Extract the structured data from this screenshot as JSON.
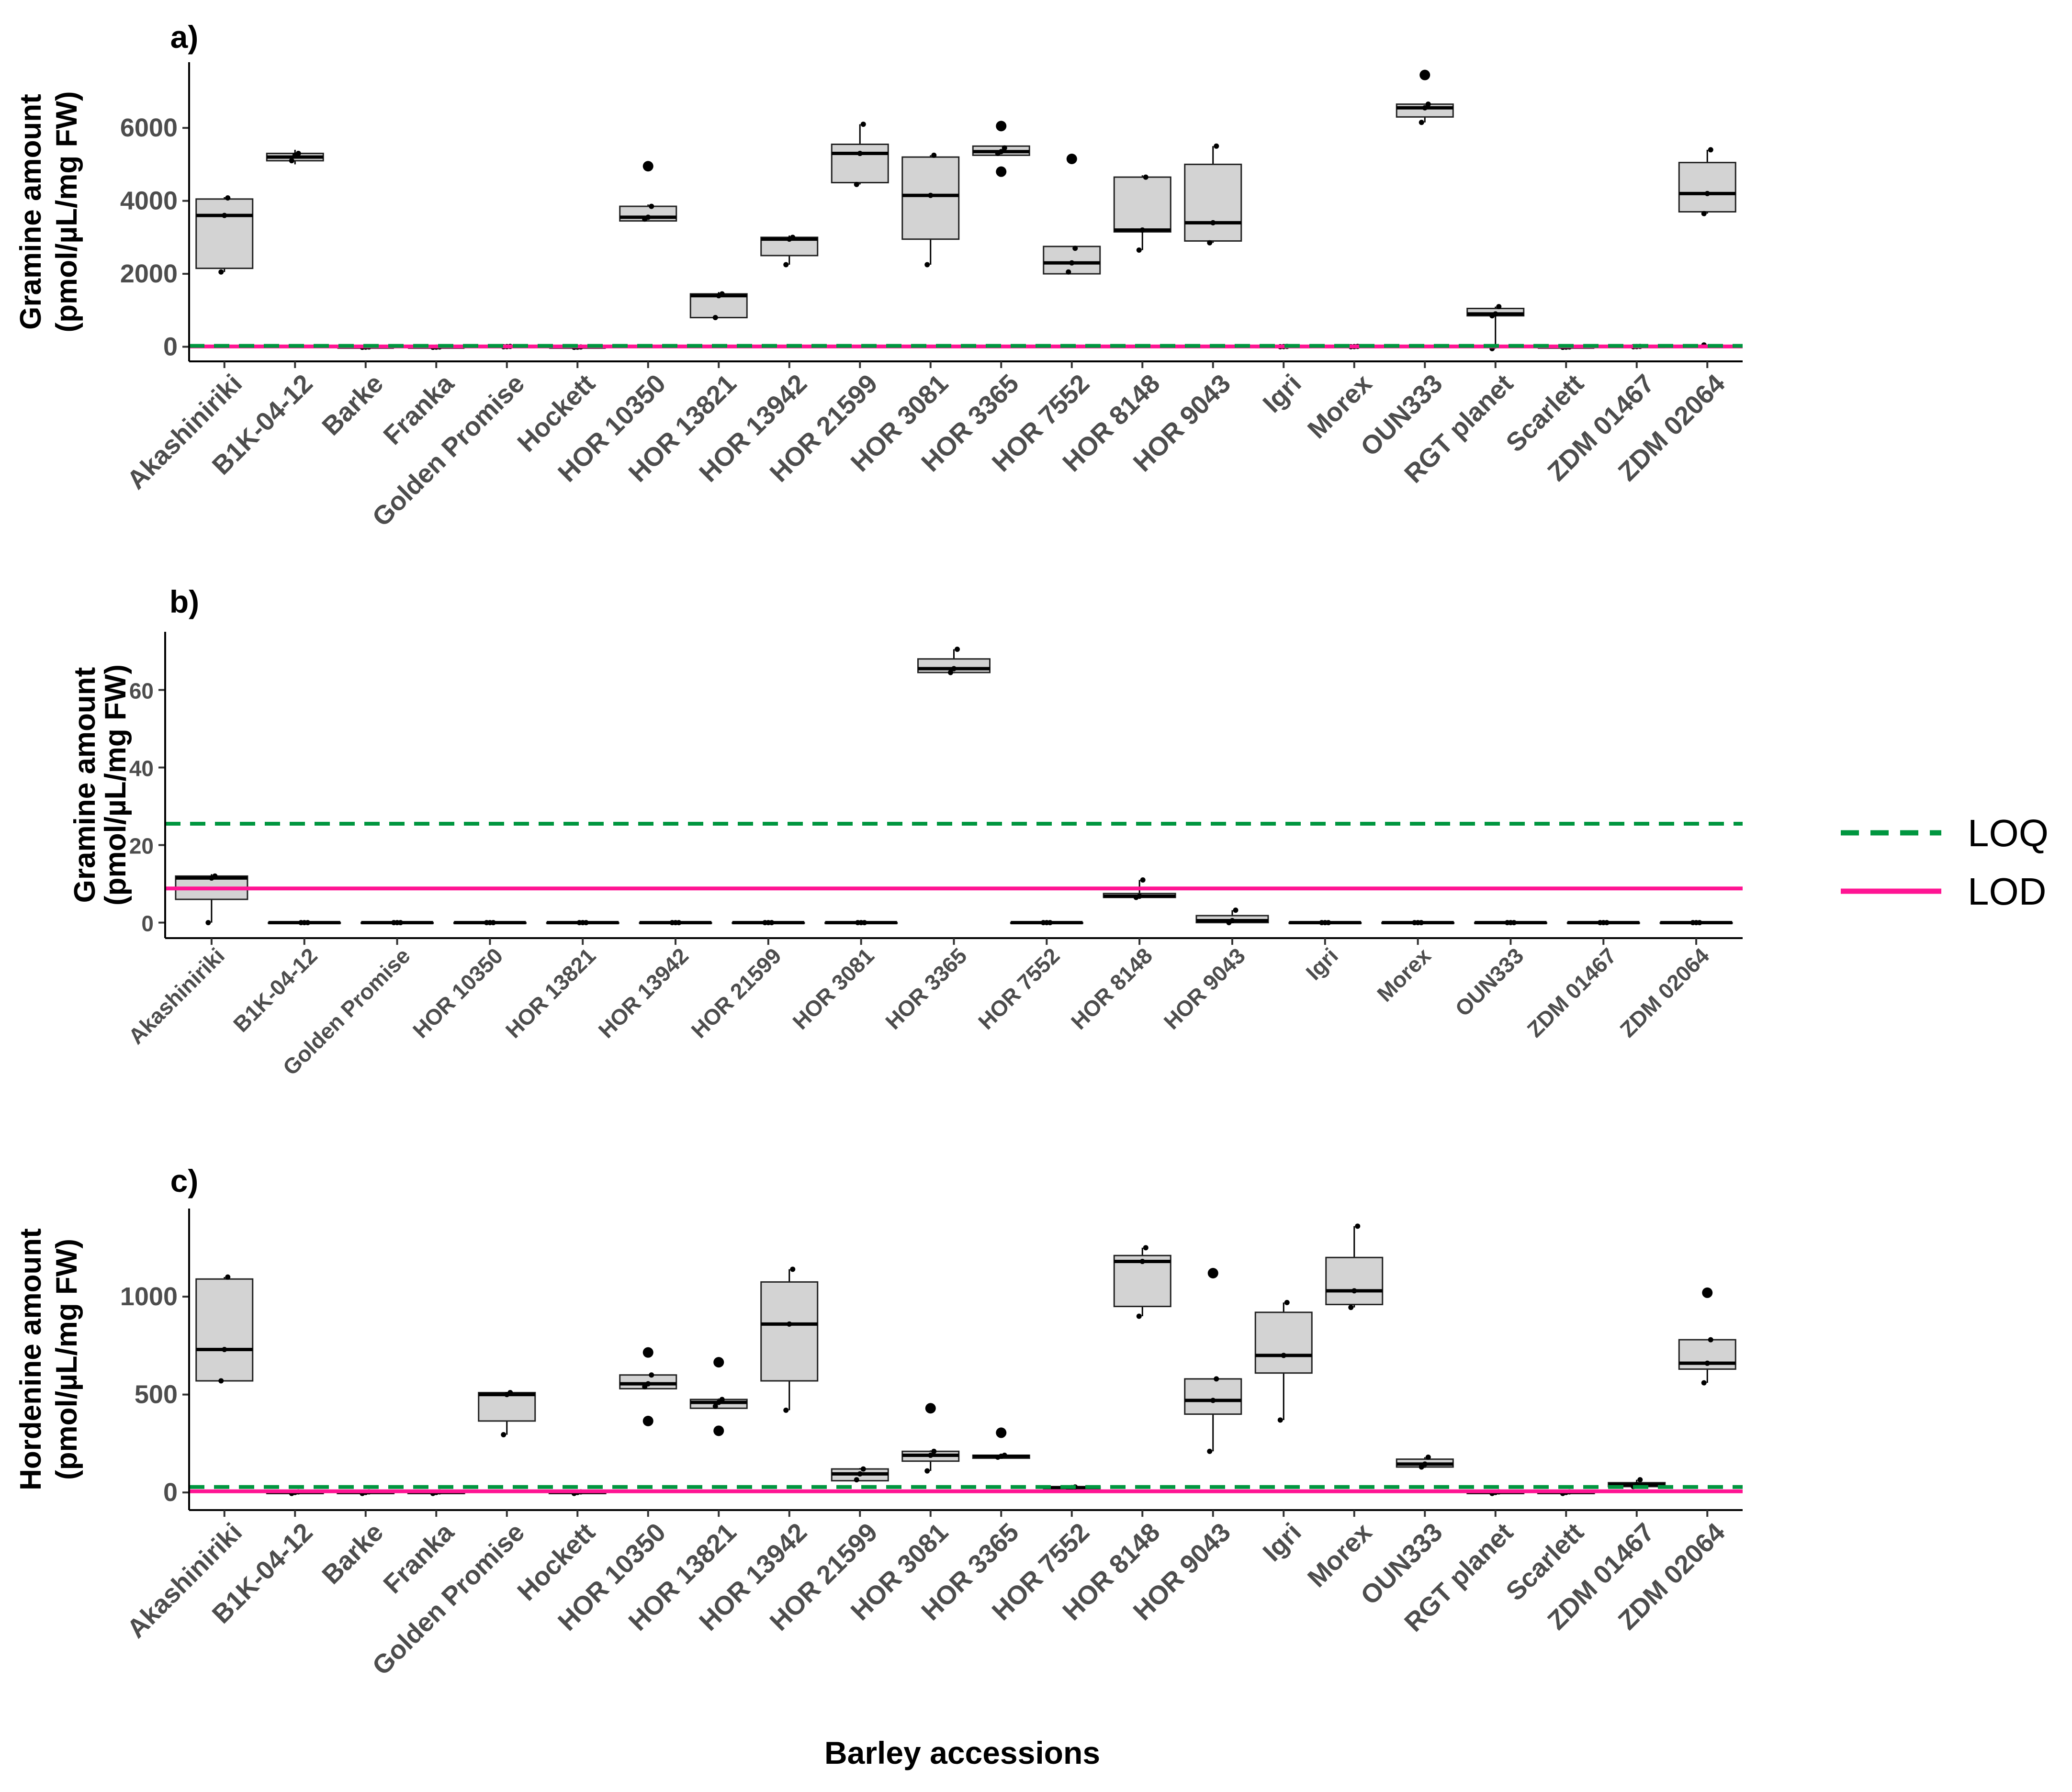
{
  "x_title": "Barley accessions",
  "legend": [
    {
      "label": "LOQ",
      "color": "#00963f",
      "dash": true
    },
    {
      "label": "LOD",
      "color": "#ff1493",
      "dash": false
    }
  ],
  "chart_data": [
    {
      "type": "box",
      "panel": "a)",
      "ylabel_lines": [
        "Gramine amount",
        "(pmol/µL/mg FW)"
      ],
      "ylim": [
        -400,
        7800
      ],
      "yticks": [
        0,
        2000,
        4000,
        6000
      ],
      "loq": 25,
      "lod": 9,
      "categories": [
        "Akashiniriki",
        "B1K-04-12",
        "Barke",
        "Franka",
        "Golden Promise",
        "Hockett",
        "HOR 10350",
        "HOR 13821",
        "HOR 13942",
        "HOR 21599",
        "HOR 3081",
        "HOR 3365",
        "HOR 7552",
        "HOR 8148",
        "HOR 9043",
        "Igri",
        "Morex",
        "OUN333",
        "RGT planet",
        "Scarlett",
        "ZDM 01467",
        "ZDM 02064"
      ],
      "boxes": [
        {
          "q1": 2150,
          "med": 3600,
          "q3": 4050,
          "lo": 2050,
          "hi": 4100,
          "pts": [
            2050,
            3600,
            4080
          ],
          "out": []
        },
        {
          "q1": 5100,
          "med": 5200,
          "q3": 5300,
          "lo": 5000,
          "hi": 5400,
          "pts": [
            5100,
            5250,
            5300
          ],
          "out": []
        },
        {
          "q1": -15,
          "med": -10,
          "q3": -5,
          "lo": -20,
          "hi": 0,
          "pts": [
            -15,
            -10,
            -5
          ],
          "out": []
        },
        {
          "q1": -15,
          "med": -10,
          "q3": -5,
          "lo": -20,
          "hi": 0,
          "pts": [
            -15,
            -10,
            -5
          ],
          "out": []
        },
        {
          "q1": 0,
          "med": 5,
          "q3": 10,
          "lo": 0,
          "hi": 12,
          "pts": [
            2,
            5,
            10
          ],
          "out": []
        },
        {
          "q1": -15,
          "med": -10,
          "q3": -5,
          "lo": -20,
          "hi": 0,
          "pts": [
            -15,
            -10,
            -5
          ],
          "out": []
        },
        {
          "q1": 3450,
          "med": 3550,
          "q3": 3850,
          "lo": 3450,
          "hi": 3900,
          "pts": [
            3500,
            3550,
            3850
          ],
          "out": [
            4950
          ]
        },
        {
          "q1": 800,
          "med": 1400,
          "q3": 1450,
          "lo": 780,
          "hi": 1500,
          "pts": [
            800,
            1400,
            1450
          ],
          "out": []
        },
        {
          "q1": 2500,
          "med": 2950,
          "q3": 3000,
          "lo": 2250,
          "hi": 3050,
          "pts": [
            2250,
            2950,
            3000
          ],
          "out": []
        },
        {
          "q1": 4500,
          "med": 5300,
          "q3": 5550,
          "lo": 4450,
          "hi": 6100,
          "pts": [
            4450,
            5300,
            6100
          ],
          "out": []
        },
        {
          "q1": 2950,
          "med": 4150,
          "q3": 5200,
          "lo": 2250,
          "hi": 5250,
          "pts": [
            2250,
            4150,
            5250
          ],
          "out": []
        },
        {
          "q1": 5250,
          "med": 5350,
          "q3": 5500,
          "lo": 5250,
          "hi": 5500,
          "pts": [
            5300,
            5350,
            5450
          ],
          "out": [
            6050,
            4800
          ]
        },
        {
          "q1": 2000,
          "med": 2300,
          "q3": 2750,
          "lo": 2000,
          "hi": 2750,
          "pts": [
            2050,
            2300,
            2700
          ],
          "out": [
            5150
          ]
        },
        {
          "q1": 3150,
          "med": 3200,
          "q3": 4650,
          "lo": 2650,
          "hi": 4700,
          "pts": [
            2650,
            3200,
            4650
          ],
          "out": []
        },
        {
          "q1": 2900,
          "med": 3400,
          "q3": 5000,
          "lo": 2850,
          "hi": 5500,
          "pts": [
            2850,
            3400,
            5500
          ],
          "out": []
        },
        {
          "q1": 0,
          "med": 5,
          "q3": 10,
          "lo": 0,
          "hi": 12,
          "pts": [
            2,
            5,
            10
          ],
          "out": []
        },
        {
          "q1": 0,
          "med": 5,
          "q3": 10,
          "lo": 0,
          "hi": 12,
          "pts": [
            2,
            5,
            10
          ],
          "out": []
        },
        {
          "q1": 6300,
          "med": 6550,
          "q3": 6650,
          "lo": 6150,
          "hi": 6650,
          "pts": [
            6150,
            6550,
            6650
          ],
          "out": [
            7450
          ]
        },
        {
          "q1": 850,
          "med": 900,
          "q3": 1050,
          "lo": -50,
          "hi": 1100,
          "pts": [
            850,
            900,
            1100,
            -50
          ],
          "out": []
        },
        {
          "q1": -15,
          "med": -10,
          "q3": -5,
          "lo": -20,
          "hi": 0,
          "pts": [
            -15,
            -10,
            -5
          ],
          "out": []
        },
        {
          "q1": 0,
          "med": 5,
          "q3": 10,
          "lo": 0,
          "hi": 12,
          "pts": [
            2,
            5,
            10
          ],
          "out": []
        },
        {
          "q1": 3700,
          "med": 4200,
          "q3": 5050,
          "lo": 3650,
          "hi": 5400,
          "pts": [
            3650,
            4200,
            5400,
            50
          ],
          "out": []
        }
      ]
    },
    {
      "type": "box",
      "panel": "b)",
      "ylabel_lines": [
        "Gramine amount",
        "(pmol/µL/mg FW)"
      ],
      "ylim": [
        -4,
        75
      ],
      "yticks": [
        0,
        20,
        40,
        60
      ],
      "loq": 25.5,
      "lod": 8.8,
      "categories": [
        "Akashiniriki",
        "B1K-04-12",
        "Golden Promise",
        "HOR 10350",
        "HOR 13821",
        "HOR 13942",
        "HOR 21599",
        "HOR 3081",
        "HOR 3365",
        "HOR 7552",
        "HOR 8148",
        "HOR 9043",
        "Igri",
        "Morex",
        "OUN333",
        "ZDM 01467",
        "ZDM 02064"
      ],
      "boxes": [
        {
          "q1": 6,
          "med": 11.5,
          "q3": 12,
          "lo": 0,
          "hi": 12.5,
          "pts": [
            0,
            11.5,
            12
          ],
          "out": []
        },
        {
          "q1": 0,
          "med": 0,
          "q3": 0,
          "lo": 0,
          "hi": 0,
          "pts": [
            0,
            0,
            0
          ],
          "out": []
        },
        {
          "q1": 0,
          "med": 0,
          "q3": 0,
          "lo": 0,
          "hi": 0,
          "pts": [
            0,
            0,
            0
          ],
          "out": []
        },
        {
          "q1": 0,
          "med": 0,
          "q3": 0,
          "lo": 0,
          "hi": 0,
          "pts": [
            0,
            0,
            0
          ],
          "out": []
        },
        {
          "q1": 0,
          "med": 0,
          "q3": 0,
          "lo": 0,
          "hi": 0,
          "pts": [
            0,
            0,
            0
          ],
          "out": []
        },
        {
          "q1": 0,
          "med": 0,
          "q3": 0,
          "lo": 0,
          "hi": 0,
          "pts": [
            0,
            0,
            0
          ],
          "out": []
        },
        {
          "q1": 0,
          "med": 0,
          "q3": 0,
          "lo": 0,
          "hi": 0,
          "pts": [
            0,
            0,
            0
          ],
          "out": []
        },
        {
          "q1": 0,
          "med": 0,
          "q3": 0,
          "lo": 0,
          "hi": 0,
          "pts": [
            0,
            0,
            0
          ],
          "out": []
        },
        {
          "q1": 64.5,
          "med": 65.5,
          "q3": 68,
          "lo": 64.3,
          "hi": 70.5,
          "pts": [
            64.5,
            65.5,
            70.5
          ],
          "out": []
        },
        {
          "q1": 0,
          "med": 0,
          "q3": 0,
          "lo": 0,
          "hi": 0,
          "pts": [
            0,
            0,
            0
          ],
          "out": []
        },
        {
          "q1": 6.5,
          "med": 6.8,
          "q3": 7.5,
          "lo": 6.5,
          "hi": 11,
          "pts": [
            6.5,
            6.8,
            11
          ],
          "out": []
        },
        {
          "q1": 0,
          "med": 0.5,
          "q3": 1.8,
          "lo": 0,
          "hi": 3.2,
          "pts": [
            0,
            0.5,
            3.2
          ],
          "out": []
        },
        {
          "q1": 0,
          "med": 0,
          "q3": 0,
          "lo": 0,
          "hi": 0,
          "pts": [
            0,
            0,
            0
          ],
          "out": []
        },
        {
          "q1": 0,
          "med": 0,
          "q3": 0,
          "lo": 0,
          "hi": 0,
          "pts": [
            0,
            0,
            0
          ],
          "out": []
        },
        {
          "q1": 0,
          "med": 0,
          "q3": 0,
          "lo": 0,
          "hi": 0,
          "pts": [
            0,
            0,
            0
          ],
          "out": []
        },
        {
          "q1": 0,
          "med": 0,
          "q3": 0,
          "lo": 0,
          "hi": 0,
          "pts": [
            0,
            0,
            0
          ],
          "out": []
        },
        {
          "q1": 0,
          "med": 0,
          "q3": 0,
          "lo": 0,
          "hi": 0,
          "pts": [
            0,
            0,
            0
          ],
          "out": []
        }
      ]
    },
    {
      "type": "box",
      "panel": "c)",
      "ylabel_lines": [
        "Hordenine amount",
        "(pmol/µL/mg FW)"
      ],
      "ylim": [
        -90,
        1450
      ],
      "yticks": [
        0,
        500,
        1000
      ],
      "loq": 28,
      "lod": 6,
      "categories": [
        "Akashiniriki",
        "B1K-04-12",
        "Barke",
        "Franka",
        "Golden Promise",
        "Hockett",
        "HOR 10350",
        "HOR 13821",
        "HOR 13942",
        "HOR 21599",
        "HOR 3081",
        "HOR 3365",
        "HOR 7552",
        "HOR 8148",
        "HOR 9043",
        "Igri",
        "Morex",
        "OUN333",
        "RGT planet",
        "Scarlett",
        "ZDM 01467",
        "ZDM 02064"
      ],
      "boxes": [
        {
          "q1": 570,
          "med": 730,
          "q3": 1090,
          "lo": 570,
          "hi": 1100,
          "pts": [
            570,
            730,
            1100
          ],
          "out": []
        },
        {
          "q1": -5,
          "med": 0,
          "q3": 3,
          "lo": -8,
          "hi": 5,
          "pts": [
            -5,
            0,
            3
          ],
          "out": []
        },
        {
          "q1": -5,
          "med": 0,
          "q3": 3,
          "lo": -8,
          "hi": 5,
          "pts": [
            -5,
            0,
            3
          ],
          "out": []
        },
        {
          "q1": -5,
          "med": 0,
          "q3": 3,
          "lo": -8,
          "hi": 5,
          "pts": [
            -5,
            0,
            3
          ],
          "out": []
        },
        {
          "q1": 365,
          "med": 500,
          "q3": 510,
          "lo": 295,
          "hi": 510,
          "pts": [
            295,
            500,
            510
          ],
          "out": []
        },
        {
          "q1": -5,
          "med": 0,
          "q3": 3,
          "lo": -8,
          "hi": 5,
          "pts": [
            -5,
            0,
            3
          ],
          "out": []
        },
        {
          "q1": 530,
          "med": 555,
          "q3": 600,
          "lo": 530,
          "hi": 600,
          "pts": [
            540,
            555,
            600
          ],
          "out": [
            715,
            365
          ]
        },
        {
          "q1": 430,
          "med": 460,
          "q3": 475,
          "lo": 430,
          "hi": 480,
          "pts": [
            440,
            460,
            475
          ],
          "out": [
            665,
            315
          ]
        },
        {
          "q1": 570,
          "med": 860,
          "q3": 1075,
          "lo": 420,
          "hi": 1140,
          "pts": [
            420,
            860,
            1140
          ],
          "out": []
        },
        {
          "q1": 60,
          "med": 95,
          "q3": 120,
          "lo": 60,
          "hi": 125,
          "pts": [
            65,
            95,
            120
          ],
          "out": []
        },
        {
          "q1": 160,
          "med": 190,
          "q3": 210,
          "lo": 110,
          "hi": 215,
          "pts": [
            110,
            190,
            210
          ],
          "out": [
            430
          ]
        },
        {
          "q1": 175,
          "med": 185,
          "q3": 190,
          "lo": 175,
          "hi": 195,
          "pts": [
            180,
            185,
            190
          ],
          "out": [
            305
          ]
        },
        {
          "q1": 20,
          "med": 25,
          "q3": 28,
          "lo": 18,
          "hi": 30,
          "pts": [
            20,
            25,
            28
          ],
          "out": []
        },
        {
          "q1": 950,
          "med": 1180,
          "q3": 1210,
          "lo": 900,
          "hi": 1250,
          "pts": [
            900,
            1180,
            1250
          ],
          "out": []
        },
        {
          "q1": 400,
          "med": 470,
          "q3": 580,
          "lo": 210,
          "hi": 580,
          "pts": [
            210,
            470,
            580
          ],
          "out": [
            1120
          ]
        },
        {
          "q1": 610,
          "med": 700,
          "q3": 920,
          "lo": 370,
          "hi": 970,
          "pts": [
            370,
            700,
            970
          ],
          "out": []
        },
        {
          "q1": 960,
          "med": 1030,
          "q3": 1200,
          "lo": 945,
          "hi": 1360,
          "pts": [
            945,
            1030,
            1360
          ],
          "out": []
        },
        {
          "q1": 130,
          "med": 145,
          "q3": 170,
          "lo": 125,
          "hi": 180,
          "pts": [
            130,
            145,
            180
          ],
          "out": []
        },
        {
          "q1": -5,
          "med": 0,
          "q3": 3,
          "lo": -8,
          "hi": 5,
          "pts": [
            -5,
            0,
            3
          ],
          "out": []
        },
        {
          "q1": -5,
          "med": 0,
          "q3": 3,
          "lo": -8,
          "hi": 5,
          "pts": [
            -5,
            0,
            3
          ],
          "out": []
        },
        {
          "q1": 30,
          "med": 40,
          "q3": 50,
          "lo": 25,
          "hi": 65,
          "pts": [
            30,
            40,
            65
          ],
          "out": []
        },
        {
          "q1": 630,
          "med": 660,
          "q3": 780,
          "lo": 560,
          "hi": 780,
          "pts": [
            560,
            660,
            780
          ],
          "out": [
            1020
          ]
        }
      ]
    }
  ]
}
